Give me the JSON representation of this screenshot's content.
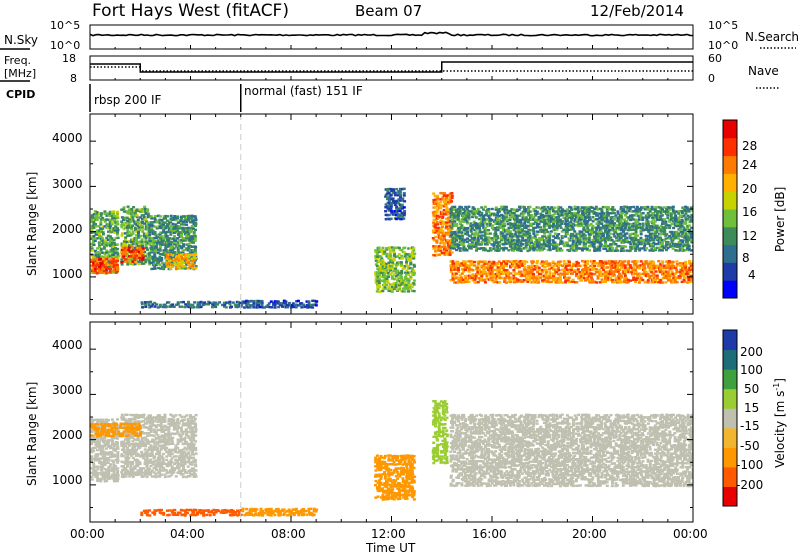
{
  "header": {
    "title": "Fort Hays West (fitACF)",
    "beam": "Beam 07",
    "date": "12/Feb/2014"
  },
  "summary": {
    "nsky_label": "N.Sky",
    "nsky_ticks": [
      "10^5",
      "10^0"
    ],
    "nsearch_label": "N.Search",
    "nsearch_ticks": [
      "10^5",
      "10^0"
    ],
    "freq_label": "Freq.",
    "freq_unit": "[MHz]",
    "freq_ticks": [
      "18",
      "8"
    ],
    "nave_label": "Nave",
    "nave_ticks": [
      "60",
      "0"
    ],
    "cpid_label": "CPID",
    "cpid_segments": [
      {
        "label": "rbsp 200 IF",
        "start_hour": 0,
        "end_hour": 6
      },
      {
        "label": "normal (fast) 151 IF",
        "start_hour": 6,
        "end_hour": 24
      }
    ]
  },
  "axes": {
    "x_ticks": [
      "00:00",
      "04:00",
      "08:00",
      "12:00",
      "16:00",
      "20:00",
      "00:00"
    ],
    "x_label": "Time UT",
    "y_label": "Slant Range [km]",
    "y_ticks": [
      "1000",
      "2000",
      "3000",
      "4000"
    ]
  },
  "colorbars": {
    "power": {
      "label": "Power [dB]",
      "ticks": [
        "28",
        "24",
        "20",
        "16",
        "12",
        "8",
        "4"
      ],
      "colors": [
        "#0000ff",
        "#1e3ca8",
        "#2e6e8e",
        "#3d8a5a",
        "#6fbf3a",
        "#c8d200",
        "#ffb000",
        "#ff7a00",
        "#ff3000",
        "#e80000"
      ]
    },
    "velocity": {
      "label": "Velocity [m s",
      "label_sup": "-1",
      "label_end": "]",
      "ticks": [
        "200",
        "100",
        "50",
        "15",
        "-15",
        "-50",
        "-100",
        "-200"
      ],
      "colors": [
        "#e80000",
        "#ff5a00",
        "#ff9800",
        "#f2b530",
        "#c0c0b0",
        "#9acd32",
        "#3fa03f",
        "#1e6e7a",
        "#1e3ca8"
      ]
    }
  },
  "chart_data": [
    {
      "type": "heatmap",
      "panel": "power",
      "title": "Fort Hays West (fitACF)",
      "xlabel": "Time UT",
      "ylabel": "Slant Range [km]",
      "xlim_hours": [
        0,
        24
      ],
      "ylim_km": [
        180,
        4600
      ],
      "value_range_db": [
        0,
        30
      ],
      "scatter_regions": [
        {
          "t0": 0.0,
          "t1": 1.1,
          "r0": 1100,
          "r1": 2500,
          "value": 12
        },
        {
          "t0": 0.0,
          "t1": 1.1,
          "r0": 1100,
          "r1": 1450,
          "value": 24
        },
        {
          "t0": 1.2,
          "t1": 2.3,
          "r0": 1300,
          "r1": 2600,
          "value": 12
        },
        {
          "t0": 1.2,
          "t1": 2.1,
          "r0": 1350,
          "r1": 1700,
          "value": 24
        },
        {
          "t0": 2.3,
          "t1": 4.2,
          "r0": 1200,
          "r1": 2400,
          "value": 10
        },
        {
          "t0": 3.0,
          "t1": 4.2,
          "r0": 1200,
          "r1": 1550,
          "value": 20
        },
        {
          "t0": 2.0,
          "t1": 6.0,
          "r0": 350,
          "r1": 500,
          "value": 8
        },
        {
          "t0": 6.0,
          "t1": 9.0,
          "r0": 350,
          "r1": 520,
          "value": 6
        },
        {
          "t0": 11.3,
          "t1": 12.9,
          "r0": 700,
          "r1": 1700,
          "value": 14
        },
        {
          "t0": 11.7,
          "t1": 12.5,
          "r0": 2300,
          "r1": 3000,
          "value": 6
        },
        {
          "t0": 13.6,
          "t1": 14.4,
          "r0": 1500,
          "r1": 2900,
          "value": 22
        },
        {
          "t0": 14.3,
          "t1": 24.0,
          "r0": 1600,
          "r1": 2600,
          "value": 10
        },
        {
          "t0": 14.3,
          "t1": 24.0,
          "r0": 900,
          "r1": 1400,
          "value": 22
        }
      ]
    },
    {
      "type": "heatmap",
      "panel": "velocity",
      "xlabel": "Time UT",
      "ylabel": "Slant Range [km]",
      "xlim_hours": [
        0,
        24
      ],
      "ylim_km": [
        180,
        4600
      ],
      "value_range_ms": [
        -250,
        250
      ],
      "scatter_regions": [
        {
          "t0": 0.0,
          "t1": 1.1,
          "r0": 1100,
          "r1": 2500,
          "value": 0
        },
        {
          "t0": 1.2,
          "t1": 4.2,
          "r0": 1200,
          "r1": 2600,
          "value": 0
        },
        {
          "t0": 0.0,
          "t1": 2.0,
          "r0": 2100,
          "r1": 2400,
          "value": -60
        },
        {
          "t0": 2.0,
          "t1": 6.0,
          "r0": 350,
          "r1": 500,
          "value": -150
        },
        {
          "t0": 6.0,
          "t1": 9.0,
          "r0": 350,
          "r1": 520,
          "value": -60
        },
        {
          "t0": 11.3,
          "t1": 12.9,
          "r0": 700,
          "r1": 1700,
          "value": -80
        },
        {
          "t0": 13.6,
          "t1": 14.2,
          "r0": 1500,
          "r1": 2900,
          "value": 40
        },
        {
          "t0": 14.3,
          "t1": 24.0,
          "r0": 1000,
          "r1": 2600,
          "value": 0
        }
      ]
    }
  ]
}
